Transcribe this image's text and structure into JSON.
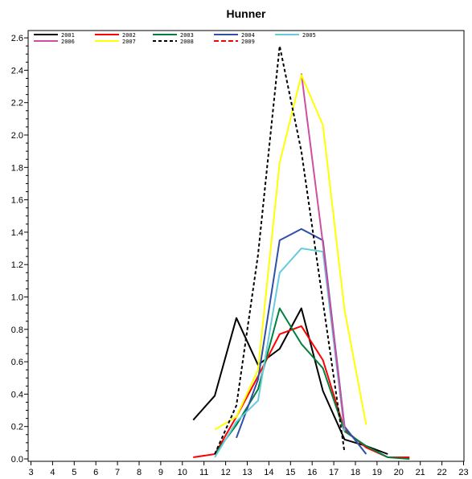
{
  "chart_data": {
    "type": "line",
    "title": "Hunner",
    "xlabel": "",
    "ylabel": "",
    "xlim": [
      3,
      23
    ],
    "ylim": [
      0,
      2.6
    ],
    "x_ticks": [
      "3",
      "4",
      "5",
      "6",
      "7",
      "8",
      "9",
      "10",
      "11",
      "12",
      "13",
      "14",
      "15",
      "16",
      "17",
      "18",
      "19",
      "20",
      "21",
      "22",
      "23"
    ],
    "y_ticks": [
      "0.0",
      "0.2",
      "0.4",
      "0.6",
      "0.8",
      "1.0",
      "1.2",
      "1.4",
      "1.6",
      "1.8",
      "2.0",
      "2.2",
      "2.4",
      "2.6"
    ],
    "legend_position": "top-left",
    "grid": false,
    "series": [
      {
        "name": "2001",
        "color": "#000000",
        "dash": "solid",
        "points": [
          [
            10.5,
            0.24
          ],
          [
            11.5,
            0.39
          ],
          [
            12.5,
            0.87
          ],
          [
            13.5,
            0.58
          ],
          [
            14.5,
            0.68
          ],
          [
            15.5,
            0.93
          ],
          [
            16.5,
            0.42
          ],
          [
            17.5,
            0.12
          ],
          [
            18.5,
            0.08
          ],
          [
            19.5,
            0.03
          ]
        ]
      },
      {
        "name": "2002",
        "color": "#ff0000",
        "dash": "solid",
        "points": [
          [
            10.5,
            0.01
          ],
          [
            11.5,
            0.03
          ],
          [
            12.5,
            0.26
          ],
          [
            13.5,
            0.51
          ],
          [
            14.5,
            0.77
          ],
          [
            15.5,
            0.82
          ],
          [
            16.5,
            0.61
          ],
          [
            17.5,
            0.18
          ],
          [
            18.5,
            0.07
          ],
          [
            19.5,
            0.01
          ],
          [
            20.5,
            0.01
          ]
        ]
      },
      {
        "name": "2003",
        "color": "#007f3f",
        "dash": "solid",
        "points": [
          [
            11.5,
            0.03
          ],
          [
            12.5,
            0.21
          ],
          [
            13.5,
            0.43
          ],
          [
            14.5,
            0.93
          ],
          [
            15.5,
            0.71
          ],
          [
            16.5,
            0.56
          ],
          [
            17.5,
            0.17
          ],
          [
            18.5,
            0.08
          ],
          [
            19.5,
            0.01
          ],
          [
            20.5,
            0.0
          ]
        ]
      },
      {
        "name": "2004",
        "color": "#2f4fa8",
        "dash": "solid",
        "points": [
          [
            12.5,
            0.13
          ],
          [
            13.5,
            0.49
          ],
          [
            14.5,
            1.35
          ],
          [
            15.5,
            1.42
          ],
          [
            16.5,
            1.35
          ],
          [
            17.5,
            0.2
          ],
          [
            18.5,
            0.03
          ]
        ]
      },
      {
        "name": "2005",
        "color": "#66ccd9",
        "dash": "solid",
        "points": [
          [
            11.5,
            0.01
          ],
          [
            12.5,
            0.23
          ],
          [
            13.5,
            0.36
          ],
          [
            14.5,
            1.15
          ],
          [
            15.5,
            1.3
          ],
          [
            16.5,
            1.28
          ],
          [
            17.5,
            0.17
          ]
        ]
      },
      {
        "name": "2006",
        "color": "#cc4fa3",
        "dash": "solid",
        "points": [
          [
            15.5,
            2.38
          ],
          [
            16.5,
            1.33
          ],
          [
            17.5,
            0.19
          ]
        ]
      },
      {
        "name": "2007",
        "color": "#ffff00",
        "dash": "solid",
        "points": [
          [
            11.5,
            0.18
          ],
          [
            12.5,
            0.26
          ],
          [
            13.5,
            0.55
          ],
          [
            14.5,
            1.83
          ],
          [
            15.5,
            2.37
          ],
          [
            16.5,
            2.06
          ],
          [
            17.5,
            0.92
          ],
          [
            18.5,
            0.21
          ]
        ]
      },
      {
        "name": "2008",
        "color": "#000000",
        "dash": "dotted",
        "points": [
          [
            11.5,
            0.03
          ],
          [
            12.5,
            0.33
          ],
          [
            13.5,
            1.26
          ],
          [
            14.5,
            2.55
          ],
          [
            15.5,
            1.9
          ],
          [
            16.5,
            0.97
          ],
          [
            17.5,
            0.04
          ]
        ]
      },
      {
        "name": "2009",
        "color": "#ff0000",
        "dash": "dashed",
        "points": []
      }
    ],
    "legend": {
      "rows": [
        [
          "2001",
          "2002",
          "2003",
          "2004",
          "2005"
        ],
        [
          "2006",
          "2007",
          "2008",
          "2009"
        ]
      ]
    }
  }
}
